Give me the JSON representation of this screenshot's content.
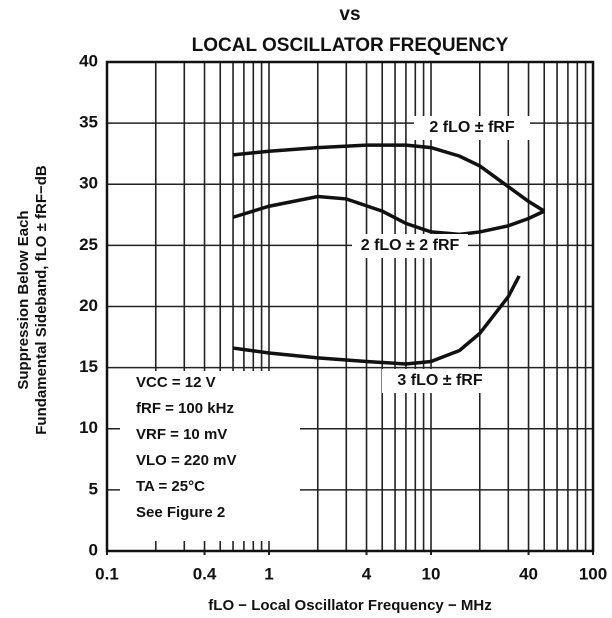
{
  "chart_data": {
    "type": "line",
    "title": "LOCAL OSCILLATOR FREQUENCY",
    "subtitle": "vs",
    "xlabel": "fLO − Local Oscillator Frequency − MHz",
    "ylabel": [
      "Suppression Below Each",
      "Fundamental Sideband, fLO ± fRF−dB"
    ],
    "xscale": "log",
    "xlim": [
      0.1,
      100
    ],
    "ylim": [
      0,
      40
    ],
    "xticks": [
      0.1,
      0.4,
      1,
      4,
      10,
      40,
      100
    ],
    "xgrid": [
      0.2,
      0.3,
      0.4,
      0.5,
      0.6,
      0.7,
      0.8,
      0.9,
      1,
      2,
      3,
      4,
      5,
      6,
      7,
      8,
      9,
      10,
      20,
      30,
      40,
      50,
      60,
      70,
      80,
      90
    ],
    "yticks": [
      0,
      5,
      10,
      15,
      20,
      25,
      30,
      35,
      40
    ],
    "grid": true,
    "series": [
      {
        "name": "2 fLO ± fRF",
        "color": "#111111",
        "x": [
          0.6,
          1,
          2,
          4,
          7,
          10,
          15,
          20,
          30,
          40,
          50
        ],
        "values": [
          32.4,
          32.7,
          33.0,
          33.2,
          33.2,
          33.0,
          32.3,
          31.5,
          29.8,
          28.6,
          27.8
        ]
      },
      {
        "name": "2 fLO ± 2 fRF",
        "color": "#111111",
        "x": [
          0.6,
          1,
          2,
          3,
          5,
          7,
          10,
          15,
          20,
          30,
          40,
          50
        ],
        "values": [
          27.3,
          28.2,
          29.0,
          28.8,
          27.8,
          26.8,
          26.1,
          25.9,
          26.1,
          26.6,
          27.2,
          27.8
        ]
      },
      {
        "name": "3 fLO ± fRF",
        "color": "#111111",
        "x": [
          0.6,
          1,
          2,
          4,
          7,
          10,
          15,
          20,
          30,
          35
        ],
        "values": [
          16.6,
          16.2,
          15.8,
          15.5,
          15.3,
          15.5,
          16.4,
          17.8,
          20.8,
          22.5
        ]
      }
    ],
    "annotations": [
      "VCC = 12 V",
      "fRF = 100 kHz",
      "VRF = 10 mV",
      "VLO = 220 mV",
      "TA = 25°C",
      "See Figure 2"
    ]
  }
}
